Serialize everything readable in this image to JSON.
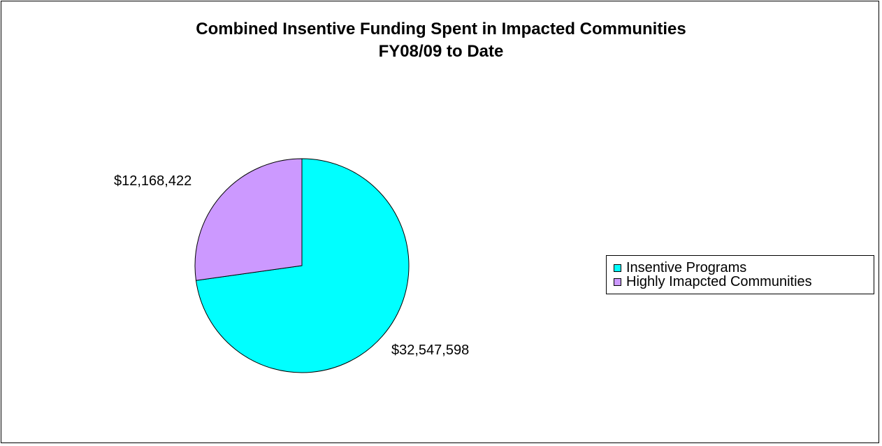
{
  "chart_data": {
    "type": "pie",
    "title": "Combined Insentive Funding Spent in Impacted Communities",
    "subtitle": "FY08/09 to Date",
    "legend_placement": "right",
    "slices": [
      {
        "name": "Insentive Programs",
        "value": 32547598,
        "label": "$32,547,598",
        "color": "#00FFFF"
      },
      {
        "name": "Highly Imapcted Communities",
        "value": 12168422,
        "label": "$12,168,422",
        "color": "#CC99FF"
      }
    ]
  }
}
